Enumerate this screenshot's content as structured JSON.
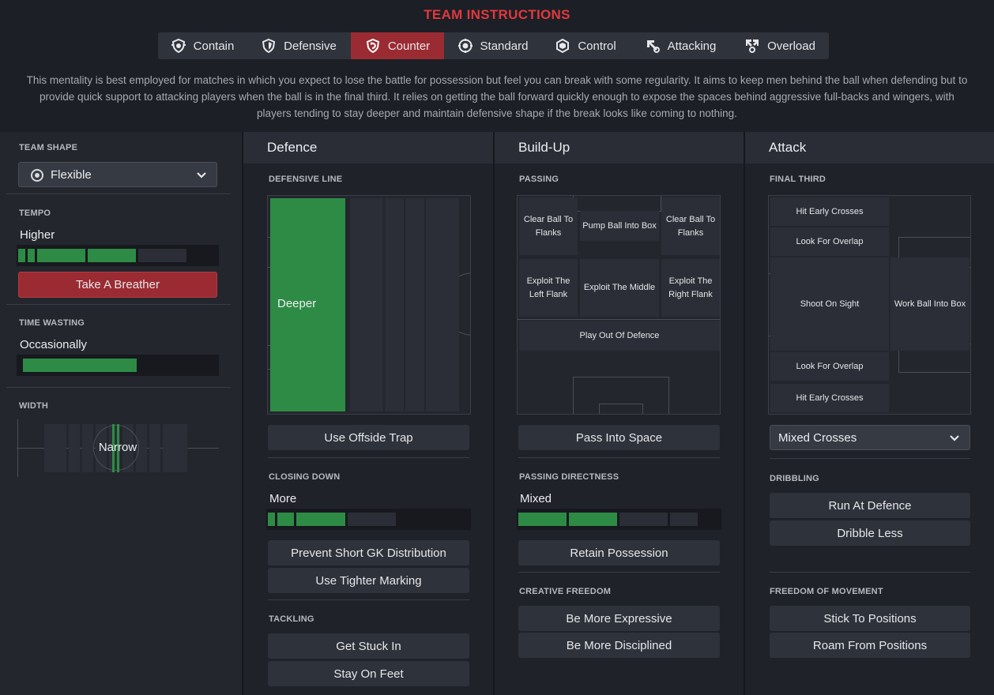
{
  "header": {
    "title": "TEAM INSTRUCTIONS",
    "mentalities": [
      {
        "label": "Contain",
        "icon": "contain-icon"
      },
      {
        "label": "Defensive",
        "icon": "defensive-icon"
      },
      {
        "label": "Counter",
        "icon": "counter-icon"
      },
      {
        "label": "Standard",
        "icon": "standard-icon"
      },
      {
        "label": "Control",
        "icon": "control-icon"
      },
      {
        "label": "Attacking",
        "icon": "attacking-icon"
      },
      {
        "label": "Overload",
        "icon": "overload-icon"
      }
    ],
    "active_mentality": "Counter",
    "description": "This mentality is best employed for matches in which you expect to lose the battle for possession but feel you can break with some regularity.  It aims to keep men behind the ball when defending but to provide quick support to attacking players when the ball is in the final third. It relies on getting the ball forward quickly enough to expose the spaces behind aggressive full-backs and wingers, with players tending to stay deeper and maintain defensive shape if the break looks like coming to nothing."
  },
  "left": {
    "team_shape_label": "TEAM SHAPE",
    "team_shape_value": "Flexible",
    "tempo_label": "TEMPO",
    "tempo_value": "Higher",
    "tempo_level": 4,
    "tempo_button": "Take A Breather",
    "time_wasting_label": "TIME WASTING",
    "time_wasting_value": "Occasionally",
    "time_wasting_level": 1,
    "width_label": "WIDTH",
    "width_value": "Narrow"
  },
  "defence": {
    "title": "Defence",
    "defensive_line_label": "DEFENSIVE LINE",
    "defensive_line_value": "Deeper",
    "offside_button": "Use Offside Trap",
    "closing_down_label": "CLOSING DOWN",
    "closing_down_value": "More",
    "closing_down_level": 3,
    "prevent_gk_button": "Prevent Short GK Distribution",
    "tighter_marking_button": "Use Tighter Marking",
    "tackling_label": "TACKLING",
    "get_stuck_in_button": "Get Stuck In",
    "stay_on_feet_button": "Stay On Feet"
  },
  "buildup": {
    "title": "Build-Up",
    "passing_label": "PASSING",
    "zones": {
      "clear_left": "Clear Ball To Flanks",
      "pump_box": "Pump Ball Into Box",
      "clear_right": "Clear Ball To Flanks",
      "exploit_left": "Exploit The Left Flank",
      "exploit_middle": "Exploit The Middle",
      "exploit_right": "Exploit The Right Flank",
      "play_out": "Play Out Of Defence"
    },
    "pass_space_button": "Pass Into Space",
    "directness_label": "PASSING DIRECTNESS",
    "directness_value": "Mixed",
    "directness_level": 2,
    "retain_button": "Retain Possession",
    "creative_label": "CREATIVE FREEDOM",
    "expressive_button": "Be More Expressive",
    "disciplined_button": "Be More Disciplined"
  },
  "attack": {
    "title": "Attack",
    "final_third_label": "FINAL THIRD",
    "zones": {
      "hit_early_top": "Hit Early Crosses",
      "overlap_top": "Look For Overlap",
      "shoot": "Shoot On Sight",
      "work_ball": "Work Ball Into Box",
      "overlap_bottom": "Look For Overlap",
      "hit_early_bottom": "Hit Early Crosses"
    },
    "crosses_value": "Mixed Crosses",
    "dribbling_label": "DRIBBLING",
    "run_at_button": "Run At Defence",
    "dribble_less_button": "Dribble Less",
    "freedom_label": "FREEDOM OF MOVEMENT",
    "stick_button": "Stick To Positions",
    "roam_button": "Roam From Positions"
  },
  "colors": {
    "accent_red": "#e0393e",
    "active_tab": "#9b2b32",
    "green": "#2e8b45"
  }
}
